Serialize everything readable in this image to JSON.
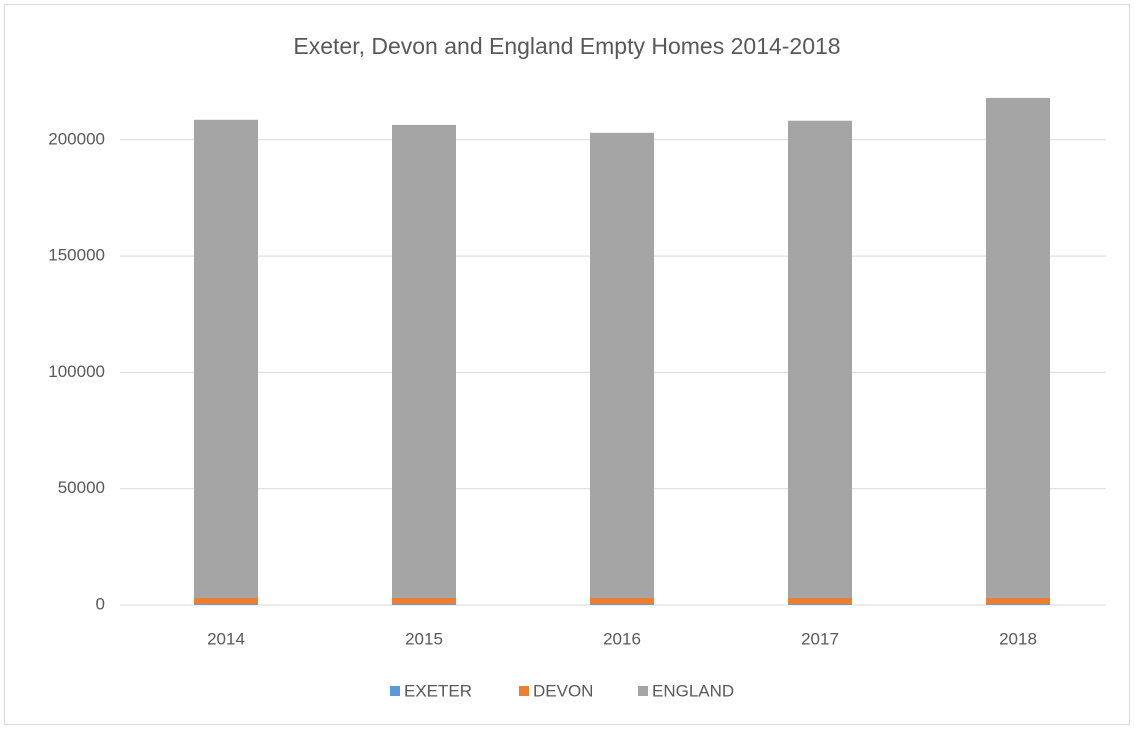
{
  "chart_data": {
    "type": "stacked_bar",
    "title": "Exeter, Devon and England Empty Homes 2014-2018",
    "categories": [
      "2014",
      "2015",
      "2016",
      "2017",
      "2018"
    ],
    "series": [
      {
        "name": "EXETER",
        "color": "#5b9bd5",
        "values": [
          400,
          400,
          400,
          400,
          400
        ]
      },
      {
        "name": "DEVON",
        "color": "#ed7d31",
        "values": [
          2600,
          2600,
          2600,
          2600,
          2600
        ]
      },
      {
        "name": "ENGLAND",
        "color": "#a5a5a5",
        "values": [
          205600,
          203400,
          200000,
          205200,
          215000
        ]
      }
    ],
    "ylim": [
      0,
      230000
    ],
    "yticks": [
      0,
      50000,
      100000,
      150000,
      200000
    ],
    "grid": true,
    "legend": "bottom"
  }
}
